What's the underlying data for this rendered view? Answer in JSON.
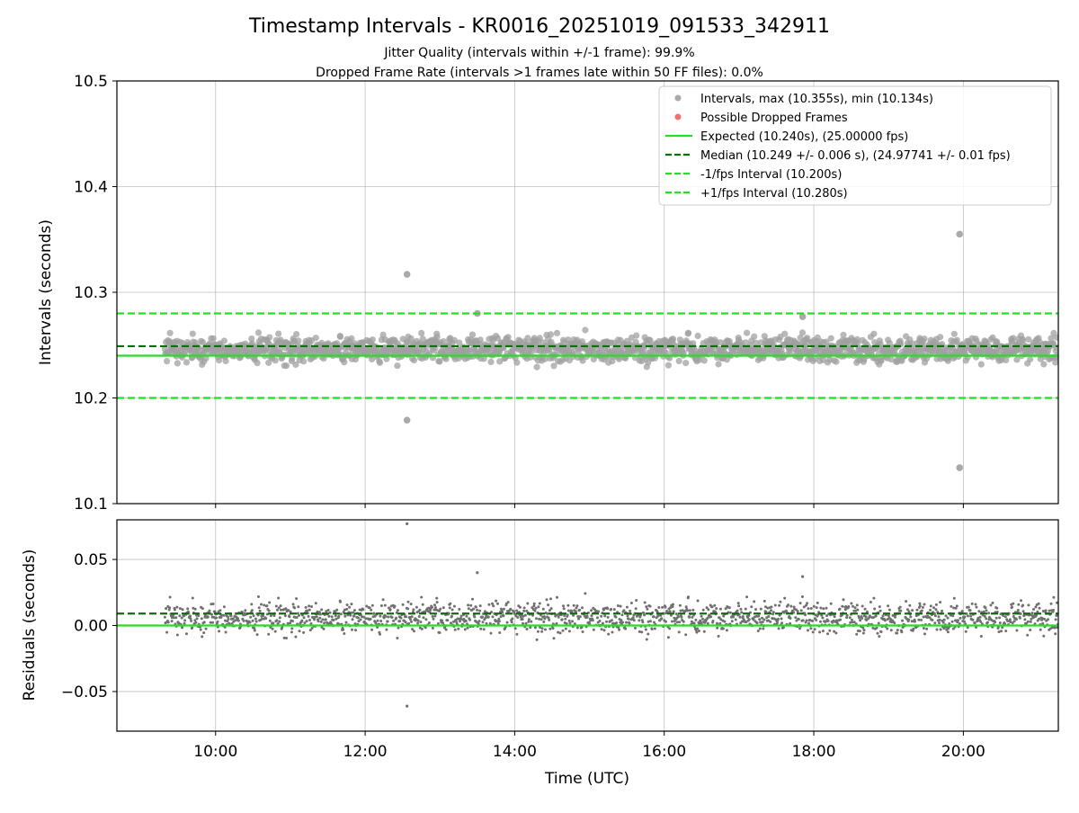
{
  "chart_data": {
    "type": "scatter",
    "title": "Timestamp Intervals - KR0016_20251019_091533_342911",
    "subtitle_lines": [
      "Jitter Quality (intervals within +/-1 frame): 99.9%",
      "Dropped Frame Rate (intervals >1 frames late within 50 FF files): 0.0%"
    ],
    "xlabel": "Time (UTC)",
    "x_unit": "hours UTC",
    "xlim": [
      8.68,
      21.27
    ],
    "x_ticks": [
      10,
      12,
      14,
      16,
      18,
      20
    ],
    "x_tick_labels": [
      "10:00",
      "12:00",
      "14:00",
      "16:00",
      "18:00",
      "20:00"
    ],
    "data_time_range": [
      9.32,
      21.27
    ],
    "top_panel": {
      "ylabel": "Intervals (seconds)",
      "ylim": [
        10.1,
        10.5
      ],
      "y_ticks": [
        10.1,
        10.2,
        10.3,
        10.4,
        10.5
      ],
      "y_tick_labels": [
        "10.1",
        "10.2",
        "10.3",
        "10.4",
        "10.5"
      ],
      "grid": true,
      "legend_position": "top-right",
      "legend": [
        {
          "label": "Intervals, max (10.355s), min (10.134s)",
          "marker": "dot",
          "color": "#a0a0a0"
        },
        {
          "label": "Possible Dropped Frames",
          "marker": "dot",
          "color": "#f06060"
        },
        {
          "label": "Expected (10.240s), (25.00000 fps)",
          "marker": "solid",
          "color": "#22e022"
        },
        {
          "label": "Median (10.249 +/- 0.006 s), (24.97741 +/- 0.01 fps)",
          "marker": "dashed",
          "color": "#0c6e0c"
        },
        {
          "label": "-1/fps Interval (10.200s)",
          "marker": "dashed",
          "color": "#22e022"
        },
        {
          "label": "+1/fps Interval (10.280s)",
          "marker": "dashed",
          "color": "#22e022"
        }
      ],
      "reference_lines": [
        {
          "name": "expected",
          "y": 10.24,
          "style": "solid",
          "color": "#22e022"
        },
        {
          "name": "median",
          "y": 10.249,
          "style": "dashed",
          "color": "#0c6e0c"
        },
        {
          "name": "minus-one-frame",
          "y": 10.2,
          "style": "dashed",
          "color": "#22e022"
        },
        {
          "name": "plus-one-frame",
          "y": 10.28,
          "style": "dashed",
          "color": "#22e022"
        }
      ],
      "series": [
        {
          "name": "Intervals",
          "color": "#a0a0a0",
          "interval_mean": 10.246,
          "interval_spread": 0.006,
          "sample_count": 1700,
          "outliers": [
            {
              "x": 12.56,
              "y": 10.317
            },
            {
              "x": 12.56,
              "y": 10.179
            },
            {
              "x": 19.95,
              "y": 10.355
            },
            {
              "x": 19.95,
              "y": 10.134
            },
            {
              "x": 13.5,
              "y": 10.28
            },
            {
              "x": 17.85,
              "y": 10.277
            }
          ]
        },
        {
          "name": "Possible Dropped Frames",
          "color": "#f06060",
          "points": []
        }
      ]
    },
    "bottom_panel": {
      "ylabel": "Residuals (seconds)",
      "ylim": [
        -0.08,
        0.08
      ],
      "y_ticks": [
        -0.05,
        0.0,
        0.05
      ],
      "y_tick_labels": [
        "−0.05",
        "0.00",
        "0.05"
      ],
      "grid": true,
      "reference_lines": [
        {
          "name": "zero",
          "y": 0.0,
          "style": "solid",
          "color": "#22e022"
        },
        {
          "name": "median-residual",
          "y": 0.009,
          "style": "dashed",
          "color": "#0c6e0c"
        }
      ],
      "series": [
        {
          "name": "Residuals",
          "color": "#707070",
          "residual_mean": 0.006,
          "residual_spread": 0.006,
          "outliers": [
            {
              "x": 12.56,
              "y": 0.077
            },
            {
              "x": 12.56,
              "y": -0.061
            },
            {
              "x": 13.5,
              "y": 0.04
            },
            {
              "x": 17.85,
              "y": 0.037
            }
          ]
        }
      ]
    }
  }
}
